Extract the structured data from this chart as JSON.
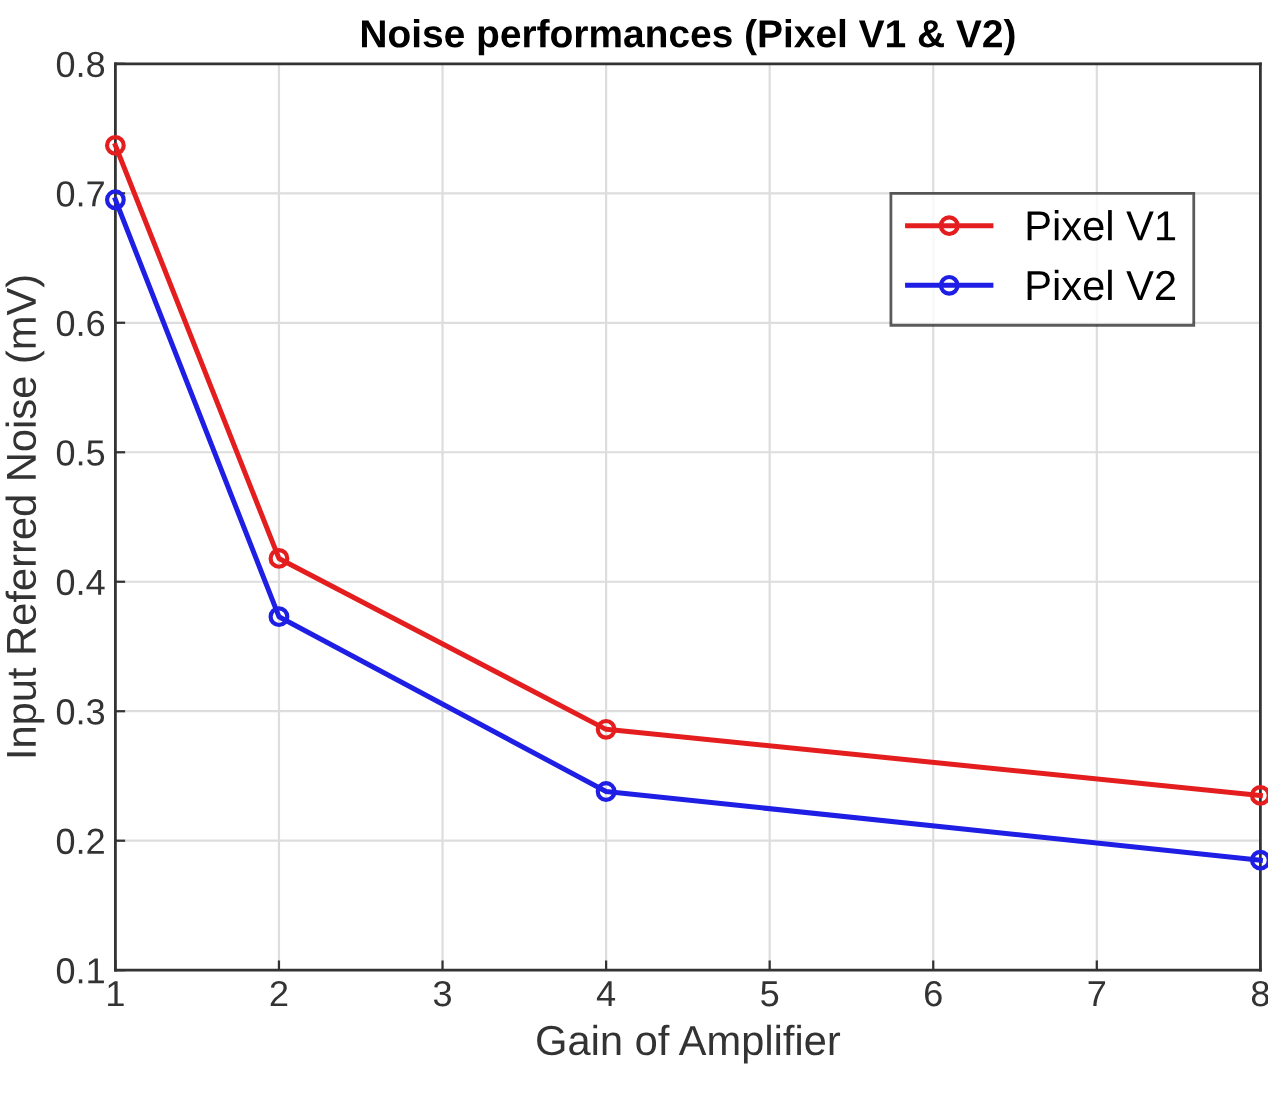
{
  "chart_data": {
    "type": "line",
    "title": "Noise performances (Pixel V1 & V2)",
    "xlabel": "Gain of Amplifier",
    "ylabel": "Input Referred Noise (mV)",
    "x": [
      1,
      2,
      4,
      8
    ],
    "series": [
      {
        "name": "Pixel V1",
        "color": "#e41e1e",
        "values": [
          0.737,
          0.418,
          0.286,
          0.235
        ]
      },
      {
        "name": "Pixel V2",
        "color": "#1e1ee4",
        "values": [
          0.695,
          0.373,
          0.238,
          0.185
        ]
      }
    ],
    "xlim": [
      1,
      8
    ],
    "xticks": [
      1,
      2,
      3,
      4,
      5,
      6,
      7,
      8
    ],
    "ylim": [
      0.1,
      0.8
    ],
    "yticks": [
      0.1,
      0.2,
      0.3,
      0.4,
      0.5,
      0.6,
      0.7,
      0.8
    ],
    "grid": true,
    "legend": "top right",
    "marker": "circle",
    "line_style": "solid"
  }
}
